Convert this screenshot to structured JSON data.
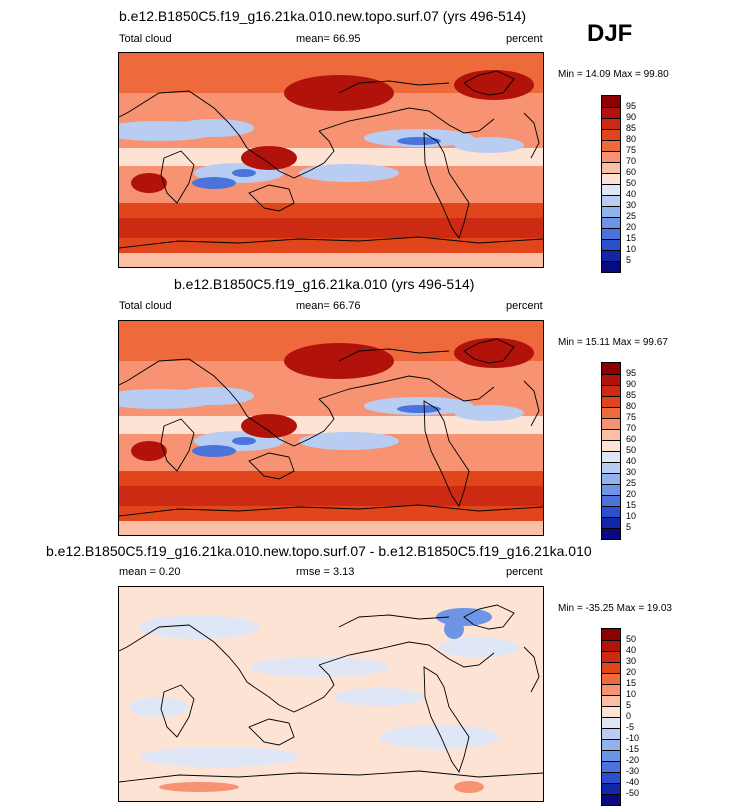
{
  "season": "DJF",
  "panels": [
    {
      "title": "b.e12.B1850C5.f19_g16.21ka.010.new.topo.surf.07 (yrs 496-514)",
      "left_label": "Total cloud",
      "mean_text": "mean=  66.95",
      "units": "percent",
      "minmax": "Min =  14.09 Max =  99.80",
      "kind": "abs",
      "colorbar": {
        "levels": [
          "95",
          "90",
          "85",
          "80",
          "75",
          "70",
          "60",
          "50",
          "40",
          "30",
          "25",
          "20",
          "15",
          "10",
          "5"
        ],
        "colors": [
          "#8b0000",
          "#b1120a",
          "#cc2a12",
          "#e0451c",
          "#ee6a3d",
          "#f79272",
          "#fbbfa6",
          "#fde3d3",
          "#dfe7f7",
          "#b8cdf1",
          "#92b2ec",
          "#6e94e6",
          "#4a73dc",
          "#2a4fcf",
          "#1426a8",
          "#0a0a80"
        ]
      }
    },
    {
      "title": "b.e12.B1850C5.f19_g16.21ka.010 (yrs 496-514)",
      "left_label": "Total cloud",
      "mean_text": "mean=  66.76",
      "units": "percent",
      "minmax": "Min =  15.11 Max =  99.67",
      "kind": "abs",
      "colorbar": {
        "levels": [
          "95",
          "90",
          "85",
          "80",
          "75",
          "70",
          "60",
          "50",
          "40",
          "30",
          "25",
          "20",
          "15",
          "10",
          "5"
        ],
        "colors": [
          "#8b0000",
          "#b1120a",
          "#cc2a12",
          "#e0451c",
          "#ee6a3d",
          "#f79272",
          "#fbbfa6",
          "#fde3d3",
          "#dfe7f7",
          "#b8cdf1",
          "#92b2ec",
          "#6e94e6",
          "#4a73dc",
          "#2a4fcf",
          "#1426a8",
          "#0a0a80"
        ]
      }
    },
    {
      "title": "b.e12.B1850C5.f19_g16.21ka.010.new.topo.surf.07 - b.e12.B1850C5.f19_g16.21ka.010",
      "left_label": "mean =   0.20",
      "mean_text": "rmse =   3.13",
      "units": "percent",
      "minmax": "Min = -35.25 Max =  19.03",
      "kind": "diff",
      "colorbar": {
        "levels": [
          "50",
          "40",
          "30",
          "20",
          "15",
          "10",
          "5",
          "0",
          "-5",
          "-10",
          "-15",
          "-20",
          "-30",
          "-40",
          "-50"
        ],
        "colors": [
          "#8b0000",
          "#b1120a",
          "#cc2a12",
          "#e0451c",
          "#ee6a3d",
          "#f79272",
          "#fbbfa6",
          "#fde3d3",
          "#dfe7f7",
          "#b8cdf1",
          "#92b2ec",
          "#6e94e6",
          "#4a73dc",
          "#2a4fcf",
          "#1426a8",
          "#0a0a80"
        ]
      }
    }
  ]
}
